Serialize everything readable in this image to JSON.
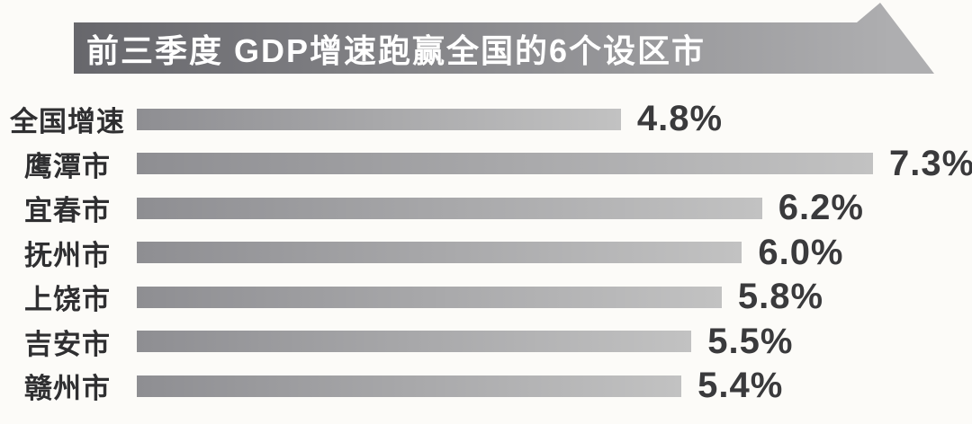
{
  "title": {
    "text": "前三季度 GDP增速跑赢全国的6个设区市"
  },
  "chart_data": {
    "type": "bar",
    "orientation": "horizontal",
    "title": "前三季度 GDP增速跑赢全国的6个设区市",
    "categories": [
      "全国增速",
      "鹰潭市",
      "宜春市",
      "抚州市",
      "上饶市",
      "吉安市",
      "赣州市"
    ],
    "values": [
      4.8,
      7.3,
      6.2,
      6.0,
      5.8,
      5.5,
      5.4
    ],
    "value_labels": [
      "4.8%",
      "7.3%",
      "6.2%",
      "6.0%",
      "5.8%",
      "5.5%",
      "5.4%"
    ],
    "unit": "%",
    "xlim": [
      0,
      7.3
    ],
    "grid": false,
    "legend": false,
    "bar_style": "gray-gradient"
  },
  "colors": {
    "bg": "#fcfbf8",
    "banner-dark": "#66666b",
    "banner-light": "#aeaeb0",
    "banner-text": "#ffffff",
    "bar-dark": "#8e8e92",
    "bar-light": "#c2c2c2",
    "label-text": "#2f2f31",
    "value-text": "#3a3a3c"
  }
}
